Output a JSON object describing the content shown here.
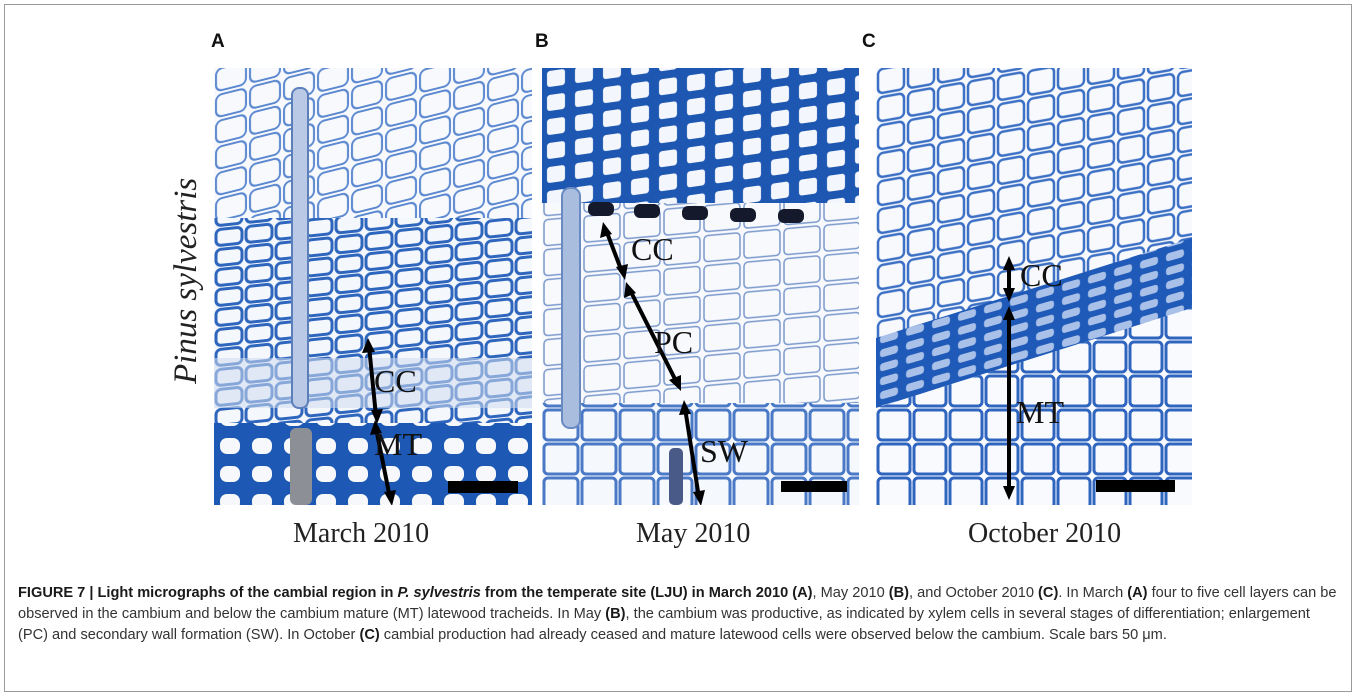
{
  "figure": {
    "species_label": "Pinus sylvestris",
    "panels": [
      {
        "letter": "A",
        "date": "March 2010",
        "zones": [
          "CC",
          "MT"
        ]
      },
      {
        "letter": "B",
        "date": "May 2010",
        "zones": [
          "CC",
          "PC",
          "SW"
        ]
      },
      {
        "letter": "C",
        "date": "October 2010",
        "zones": [
          "CC",
          "MT"
        ]
      }
    ],
    "colors": {
      "stain_dark": "#1d55b0",
      "stain_mid": "#3f78c8",
      "stain_light": "#9cb9e4",
      "background": "#f6f8fc"
    }
  },
  "caption": {
    "heading_a": "FIGURE 7 | Light micrographs of the cambial region in ",
    "heading_species": "P. sylvestris",
    "heading_b": " from the temperate site (LJU) in March 2010 ",
    "ref_a1": "(A)",
    "t1": ", May 2010 ",
    "ref_b1": "(B)",
    "t2": ", and October 2010 ",
    "ref_c1": "(C)",
    "t3": ". In March ",
    "ref_a2": "(A)",
    "t4": " four to five cell layers can be observed in the cambium and below the cambium mature (MT) latewood tracheids. In May ",
    "ref_b2": "(B)",
    "t5": ", the cambium was productive, as indicated by xylem cells in several stages of differentiation; enlargement (PC) and secondary wall formation (SW). In October ",
    "ref_c2": "(C)",
    "t6": " cambial production had already ceased and mature latewood cells were observed below the cambium. Scale bars 50 μm."
  }
}
